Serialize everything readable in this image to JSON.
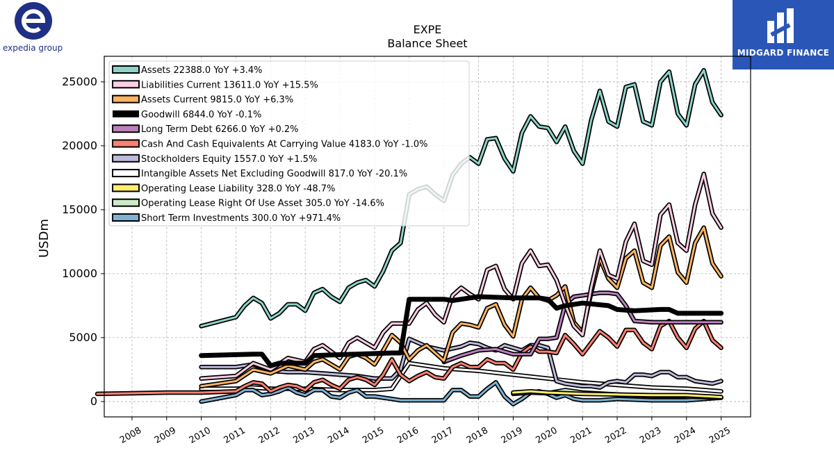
{
  "brand_left": {
    "text": "expedia group",
    "color": "#1f2f86"
  },
  "brand_right": {
    "text": "MIDGARD FINANCE",
    "background": "#2a56b8"
  },
  "chart_data": {
    "type": "line",
    "title": "EXPE",
    "subtitle": "Balance  Sheet",
    "ylabel": "USDm",
    "xlabel": "",
    "ylim": [
      -1200,
      27000
    ],
    "xlim": [
      2007.2,
      2025.85
    ],
    "yticks": [
      0,
      5000,
      10000,
      15000,
      20000,
      25000
    ],
    "xticks": [
      2008,
      2009,
      2010,
      2011,
      2012,
      2013,
      2014,
      2015,
      2016,
      2017,
      2018,
      2019,
      2020,
      2021,
      2022,
      2023,
      2024,
      2025
    ],
    "grid": true,
    "legend_position": "top-left",
    "series": [
      {
        "name": "Assets",
        "legend": "Assets  22388.0 YoY +3.4%",
        "color": "#8dd3c7",
        "width": 3,
        "x": [
          2010.0,
          2011.0,
          2011.25,
          2011.5,
          2011.75,
          2012.0,
          2012.25,
          2012.5,
          2012.75,
          2013.0,
          2013.25,
          2013.5,
          2013.75,
          2014.0,
          2014.25,
          2014.5,
          2014.75,
          2015.0,
          2015.25,
          2015.5,
          2015.75,
          2016.0,
          2016.25,
          2016.5,
          2016.75,
          2017.0,
          2017.25,
          2017.5,
          2017.75,
          2018.0,
          2018.25,
          2018.5,
          2018.75,
          2019.0,
          2019.25,
          2019.5,
          2019.75,
          2020.0,
          2020.25,
          2020.5,
          2020.75,
          2021.0,
          2021.25,
          2021.5,
          2021.75,
          2022.0,
          2022.25,
          2022.5,
          2022.75,
          2023.0,
          2023.25,
          2023.5,
          2023.75,
          2024.0,
          2024.25,
          2024.5,
          2024.75,
          2025.0
        ],
        "y": [
          5900,
          6600,
          7500,
          8100,
          7700,
          6500,
          6900,
          7600,
          7600,
          7100,
          8500,
          8800,
          8200,
          7800,
          8900,
          9300,
          9500,
          9000,
          10200,
          11800,
          12400,
          16200,
          16600,
          16800,
          16200,
          15700,
          17700,
          18600,
          19100,
          18600,
          20500,
          20600,
          19000,
          18000,
          21000,
          22300,
          21500,
          21400,
          20300,
          21500,
          19600,
          18600,
          22000,
          24300,
          21900,
          21500,
          24600,
          24800,
          21900,
          21600,
          25000,
          25800,
          22500,
          21600,
          24800,
          25900,
          23400,
          22400
        ]
      },
      {
        "name": "Liabilities Current",
        "legend": "Liabilities Current  13611.0 YoY +15.5%",
        "color": "#fccde5",
        "width": 3,
        "x": [
          2010.0,
          2011.0,
          2011.5,
          2012.0,
          2012.5,
          2013.0,
          2013.25,
          2013.5,
          2013.75,
          2014.0,
          2014.25,
          2014.5,
          2014.75,
          2015.0,
          2015.25,
          2015.5,
          2015.75,
          2016.0,
          2016.25,
          2016.5,
          2016.75,
          2017.0,
          2017.25,
          2017.5,
          2017.75,
          2018.0,
          2018.25,
          2018.5,
          2018.75,
          2019.0,
          2019.25,
          2019.5,
          2019.75,
          2020.0,
          2020.25,
          2020.5,
          2020.75,
          2021.0,
          2021.25,
          2021.5,
          2021.75,
          2022.0,
          2022.25,
          2022.5,
          2022.75,
          2023.0,
          2023.25,
          2023.5,
          2023.75,
          2024.0,
          2024.25,
          2024.5,
          2024.75,
          2025.0
        ],
        "y": [
          1800,
          2000,
          3000,
          2500,
          3400,
          3100,
          4100,
          4400,
          3900,
          3400,
          4600,
          5000,
          4600,
          4200,
          5400,
          6100,
          6100,
          6100,
          7200,
          7700,
          6800,
          6200,
          8300,
          8900,
          8400,
          8000,
          10300,
          10600,
          8800,
          8000,
          10800,
          11800,
          10600,
          10700,
          9500,
          7600,
          5900,
          5200,
          8900,
          11800,
          9900,
          9600,
          12500,
          13900,
          11000,
          10700,
          14600,
          15400,
          12400,
          11800,
          15400,
          17800,
          14700,
          13600
        ]
      },
      {
        "name": "Assets Current",
        "legend": "Assets Current  9815.0 YoY +6.3%",
        "color": "#fdb462",
        "width": 3,
        "x": [
          2010.0,
          2011.0,
          2011.5,
          2012.0,
          2012.5,
          2013.0,
          2013.25,
          2013.5,
          2013.75,
          2014.0,
          2014.25,
          2014.5,
          2014.75,
          2015.0,
          2015.25,
          2015.5,
          2015.75,
          2016.0,
          2016.25,
          2016.5,
          2016.75,
          2017.0,
          2017.25,
          2017.5,
          2017.75,
          2018.0,
          2018.25,
          2018.5,
          2018.75,
          2019.0,
          2019.25,
          2019.5,
          2019.75,
          2020.0,
          2020.25,
          2020.5,
          2020.75,
          2021.0,
          2021.25,
          2021.5,
          2021.75,
          2022.0,
          2022.25,
          2022.5,
          2022.75,
          2023.0,
          2023.25,
          2023.5,
          2023.75,
          2024.0,
          2024.25,
          2024.5,
          2024.75,
          2025.0
        ],
        "y": [
          1200,
          1600,
          2500,
          2200,
          2800,
          2500,
          3100,
          3300,
          2900,
          2500,
          3500,
          3700,
          3400,
          2900,
          4000,
          5200,
          4600,
          3300,
          4000,
          4400,
          3800,
          3200,
          5400,
          6100,
          6000,
          5800,
          7300,
          7600,
          6000,
          5100,
          8000,
          8900,
          8100,
          7900,
          8300,
          9000,
          6200,
          5400,
          8500,
          11200,
          9600,
          8900,
          11200,
          11800,
          9300,
          8900,
          12200,
          12900,
          10100,
          9300,
          12400,
          13600,
          10800,
          9800
        ]
      },
      {
        "name": "Goodwill",
        "legend": "Goodwill  6844.0 YoY -0.1%",
        "color": "#000000",
        "width": 7,
        "x": [
          2010.0,
          2011.5,
          2011.75,
          2012.0,
          2012.25,
          2013.0,
          2013.25,
          2015.5,
          2015.75,
          2016.0,
          2017.0,
          2017.25,
          2017.75,
          2018.0,
          2019.0,
          2019.75,
          2020.0,
          2020.25,
          2020.5,
          2021.0,
          2021.75,
          2022.0,
          2022.5,
          2023.25,
          2023.5,
          2023.75,
          2024.0,
          2025.0
        ],
        "y": [
          3600,
          3700,
          3700,
          2800,
          3000,
          3000,
          3600,
          3800,
          3800,
          8000,
          8000,
          7900,
          8100,
          8200,
          8100,
          8100,
          8000,
          7300,
          7500,
          7700,
          7500,
          7200,
          7100,
          7200,
          7200,
          6900,
          6900,
          6900
        ]
      },
      {
        "name": "Long Term Debt",
        "legend": "Long Term Debt  6266.0 YoY +0.2%",
        "color": "#bc80bd",
        "width": 3,
        "x": [
          2017.0,
          2017.5,
          2018.0,
          2018.5,
          2019.0,
          2019.5,
          2019.75,
          2020.0,
          2020.25,
          2020.5,
          2020.75,
          2021.0,
          2021.5,
          2021.75,
          2022.0,
          2022.25,
          2022.5,
          2023.0,
          2024.0,
          2025.0
        ],
        "y": [
          3100,
          3600,
          4000,
          4100,
          3700,
          3700,
          4900,
          4900,
          5000,
          7600,
          8200,
          8300,
          8500,
          8500,
          8400,
          7500,
          6300,
          6200,
          6200,
          6200
        ]
      },
      {
        "name": "Cash And Cash Equivalents At Carrying Value",
        "legend": "Cash And Cash Equivalents At Carrying Value  4183.0 YoY -1.0%",
        "color": "#fb8072",
        "width": 3,
        "x": [
          2007.0,
          2008.0,
          2009.0,
          2010.0,
          2011.0,
          2011.25,
          2011.5,
          2011.75,
          2012.0,
          2012.25,
          2012.5,
          2012.75,
          2013.0,
          2013.25,
          2013.5,
          2013.75,
          2014.0,
          2014.25,
          2014.5,
          2014.75,
          2015.0,
          2015.25,
          2015.5,
          2015.75,
          2016.0,
          2016.25,
          2016.5,
          2016.75,
          2017.0,
          2017.25,
          2017.5,
          2017.75,
          2018.0,
          2018.25,
          2018.5,
          2018.75,
          2019.0,
          2019.25,
          2019.5,
          2019.75,
          2020.0,
          2020.25,
          2020.5,
          2020.75,
          2021.0,
          2021.25,
          2021.5,
          2021.75,
          2022.0,
          2022.25,
          2022.5,
          2022.75,
          2023.0,
          2023.25,
          2023.5,
          2023.75,
          2024.0,
          2024.25,
          2024.5,
          2024.75,
          2025.0
        ],
        "y": [
          600,
          650,
          700,
          700,
          800,
          1200,
          1500,
          1400,
          800,
          1100,
          1300,
          1200,
          900,
          1500,
          1700,
          1300,
          1000,
          1700,
          1900,
          1700,
          1300,
          2100,
          3300,
          2100,
          1600,
          2000,
          2300,
          1900,
          1800,
          2700,
          3000,
          2700,
          2700,
          3300,
          3000,
          3000,
          2500,
          3800,
          4300,
          3900,
          3900,
          3800,
          5200,
          4500,
          3700,
          4600,
          5500,
          5000,
          4300,
          5600,
          5600,
          4600,
          4100,
          5900,
          6300,
          5000,
          4200,
          5700,
          6300,
          4800,
          4200
        ]
      },
      {
        "name": "Stockholders Equity",
        "legend": "Stockholders Equity  1557.0 YoY +1.5%",
        "color": "#bebada",
        "width": 3,
        "x": [
          2010.0,
          2011.0,
          2011.5,
          2012.0,
          2012.5,
          2013.0,
          2013.5,
          2014.0,
          2014.5,
          2015.0,
          2015.5,
          2015.75,
          2016.0,
          2016.5,
          2017.0,
          2017.5,
          2017.75,
          2018.0,
          2018.25,
          2018.5,
          2018.75,
          2019.0,
          2019.25,
          2019.5,
          2019.75,
          2020.0,
          2020.25,
          2020.5,
          2020.75,
          2021.0,
          2021.25,
          2021.5,
          2021.75,
          2022.0,
          2022.25,
          2022.5,
          2022.75,
          2023.0,
          2023.25,
          2023.5,
          2023.75,
          2024.0,
          2024.25,
          2024.5,
          2024.75,
          2025.0
        ],
        "y": [
          2700,
          2700,
          2900,
          2400,
          2300,
          2300,
          2200,
          2100,
          2000,
          1800,
          1800,
          2500,
          4900,
          4300,
          4000,
          4300,
          4600,
          4500,
          4200,
          4000,
          4400,
          4200,
          4000,
          4400,
          4400,
          4200,
          1600,
          1400,
          1300,
          1200,
          1200,
          1100,
          1500,
          1600,
          1500,
          2100,
          2100,
          2000,
          2300,
          2300,
          1900,
          1900,
          1600,
          1500,
          1400,
          1600
        ]
      },
      {
        "name": "Intangible Assets Net Excluding Goodwill",
        "legend": "Intangible Assets Net Excluding Goodwill  817.0 YoY -20.1%",
        "color": "#ffffff",
        "width": 3,
        "x": [
          2010.0,
          2011.0,
          2011.5,
          2012.0,
          2013.0,
          2014.0,
          2015.0,
          2015.5,
          2016.0,
          2017.0,
          2018.0,
          2019.0,
          2020.0,
          2021.0,
          2022.0,
          2023.0,
          2024.0,
          2025.0
        ],
        "y": [
          1000,
          1000,
          1100,
          1000,
          1000,
          900,
          900,
          1000,
          3000,
          2600,
          2400,
          2100,
          1800,
          1500,
          1300,
          1100,
          1000,
          800
        ]
      },
      {
        "name": "Operating Lease Liability",
        "legend": "Operating Lease Liability  328.0 YoY -48.7%",
        "color": "#ffed6f",
        "width": 3,
        "x": [
          2019.0,
          2019.5,
          2020.0,
          2021.0,
          2022.0,
          2023.0,
          2024.0,
          2025.0
        ],
        "y": [
          700,
          800,
          700,
          600,
          550,
          500,
          500,
          350
        ]
      },
      {
        "name": "Operating Lease Right Of Use Asset",
        "legend": "Operating Lease Right Of Use Asset  305.0 YoY -14.6%",
        "color": "#ccebc5",
        "width": 3,
        "x": [
          2019.0,
          2019.5,
          2020.0,
          2020.5,
          2021.0,
          2022.0,
          2023.0,
          2024.0,
          2025.0
        ],
        "y": [
          600,
          700,
          650,
          900,
          700,
          550,
          450,
          400,
          300
        ]
      },
      {
        "name": "Short Term Investments",
        "legend": "Short Term Investments  300.0 YoY +971.4%",
        "color": "#80b1d3",
        "width": 3,
        "x": [
          2010.0,
          2011.0,
          2011.25,
          2011.5,
          2011.75,
          2012.0,
          2012.25,
          2012.5,
          2012.75,
          2013.0,
          2013.25,
          2013.5,
          2013.75,
          2014.0,
          2014.25,
          2014.5,
          2014.75,
          2015.0,
          2015.25,
          2015.5,
          2015.75,
          2016.0,
          2016.5,
          2017.0,
          2017.25,
          2017.5,
          2017.75,
          2018.0,
          2018.25,
          2018.5,
          2018.75,
          2019.0,
          2019.25,
          2019.5,
          2019.75,
          2020.0,
          2020.25,
          2020.5,
          2020.75,
          2021.0,
          2021.5,
          2022.0,
          2023.0,
          2024.0,
          2024.5,
          2025.0
        ],
        "y": [
          0,
          500,
          900,
          900,
          500,
          600,
          800,
          1100,
          700,
          500,
          900,
          900,
          400,
          300,
          700,
          900,
          400,
          400,
          300,
          200,
          100,
          100,
          100,
          100,
          900,
          900,
          400,
          400,
          1000,
          1500,
          400,
          -200,
          200,
          700,
          800,
          600,
          300,
          500,
          200,
          100,
          100,
          200,
          100,
          100,
          200,
          300
        ]
      }
    ]
  }
}
